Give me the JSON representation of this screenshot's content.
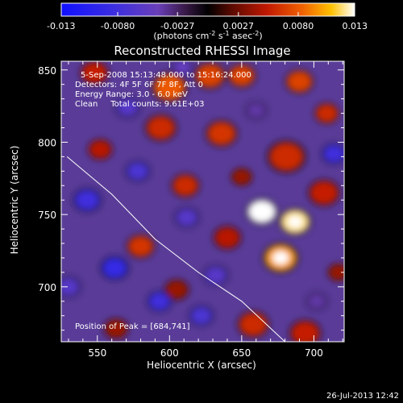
{
  "chart_data": {
    "type": "heatmap",
    "title": "Reconstructed RHESSI Image",
    "xlabel": "Heliocentric X (arcsec)",
    "ylabel": "Heliocentric Y (arcsec)",
    "xlim": [
      525,
      721
    ],
    "ylim": [
      662,
      856
    ],
    "xticks": [
      550,
      600,
      650,
      700
    ],
    "yticks": [
      700,
      750,
      800,
      850
    ],
    "annotations": [
      "5-Sep-2008 15:13:48.000 to 15:16:24.000",
      "Detectors: 4F 5F 6F 7F 8F, Att 0",
      "Energy Range: 3.0 - 6.0 keV",
      "Clean     Total counts: 9.61E+03"
    ],
    "peak_label": "Position of Peak = [684,741]",
    "colorbar": {
      "min": -0.013,
      "max": 0.013,
      "ticks": [
        "-0.013",
        "-0.0080",
        "-0.0027",
        "0.0027",
        "0.0080",
        "0.013"
      ],
      "tick_values": [
        -0.013,
        -0.008,
        -0.0027,
        0.0027,
        0.008,
        0.013
      ],
      "units_prefix": "(photons cm",
      "units_sup1": "-2",
      "units_mid1": " s",
      "units_sup2": "-1",
      "units_mid2": " asec",
      "units_sup3": "-2",
      "units_suffix": ")"
    },
    "limb": [
      [
        529,
        790
      ],
      [
        560,
        764
      ],
      [
        590,
        733
      ],
      [
        620,
        710
      ],
      [
        650,
        690
      ],
      [
        680,
        662
      ]
    ],
    "blobs": [
      {
        "x": 664,
        "y": 752,
        "v": 0.013,
        "r": 9
      },
      {
        "x": 687,
        "y": 745,
        "v": 0.012,
        "r": 9
      },
      {
        "x": 677,
        "y": 720,
        "v": 0.01,
        "r": 10
      },
      {
        "x": 600,
        "y": 838,
        "v": 0.008,
        "r": 10
      },
      {
        "x": 628,
        "y": 846,
        "v": 0.007,
        "r": 9
      },
      {
        "x": 650,
        "y": 846,
        "v": 0.007,
        "r": 8
      },
      {
        "x": 690,
        "y": 842,
        "v": 0.007,
        "r": 8
      },
      {
        "x": 636,
        "y": 806,
        "v": 0.0065,
        "r": 9
      },
      {
        "x": 594,
        "y": 810,
        "v": 0.006,
        "r": 9
      },
      {
        "x": 681,
        "y": 790,
        "v": 0.006,
        "r": 11
      },
      {
        "x": 709,
        "y": 820,
        "v": 0.006,
        "r": 7
      },
      {
        "x": 707,
        "y": 765,
        "v": 0.0055,
        "r": 9
      },
      {
        "x": 611,
        "y": 770,
        "v": 0.006,
        "r": 8
      },
      {
        "x": 548,
        "y": 848,
        "v": 0.0055,
        "r": 8
      },
      {
        "x": 580,
        "y": 728,
        "v": 0.0065,
        "r": 8
      },
      {
        "x": 640,
        "y": 734,
        "v": 0.005,
        "r": 8
      },
      {
        "x": 552,
        "y": 795,
        "v": 0.005,
        "r": 7
      },
      {
        "x": 658,
        "y": 674,
        "v": 0.006,
        "r": 9
      },
      {
        "x": 694,
        "y": 668,
        "v": 0.0055,
        "r": 9
      },
      {
        "x": 605,
        "y": 698,
        "v": 0.004,
        "r": 7
      },
      {
        "x": 563,
        "y": 671,
        "v": 0.004,
        "r": 7
      },
      {
        "x": 650,
        "y": 776,
        "v": 0.004,
        "r": 6
      },
      {
        "x": 717,
        "y": 710,
        "v": 0.004,
        "r": 6
      },
      {
        "x": 571,
        "y": 824,
        "v": -0.006,
        "r": 7
      },
      {
        "x": 543,
        "y": 760,
        "v": -0.008,
        "r": 8
      },
      {
        "x": 578,
        "y": 780,
        "v": -0.007,
        "r": 7
      },
      {
        "x": 562,
        "y": 713,
        "v": -0.009,
        "r": 8
      },
      {
        "x": 593,
        "y": 690,
        "v": -0.008,
        "r": 7
      },
      {
        "x": 612,
        "y": 748,
        "v": -0.006,
        "r": 7
      },
      {
        "x": 622,
        "y": 680,
        "v": -0.007,
        "r": 7
      },
      {
        "x": 632,
        "y": 708,
        "v": -0.006,
        "r": 7
      },
      {
        "x": 714,
        "y": 792,
        "v": -0.008,
        "r": 7
      },
      {
        "x": 609,
        "y": 852,
        "v": -0.005,
        "r": 6
      },
      {
        "x": 530,
        "y": 700,
        "v": -0.006,
        "r": 7
      },
      {
        "x": 660,
        "y": 822,
        "v": -0.004,
        "r": 6
      },
      {
        "x": 702,
        "y": 690,
        "v": -0.004,
        "r": 6
      }
    ]
  },
  "footer": {
    "timestamp": "26-Jul-2013 12:42"
  }
}
